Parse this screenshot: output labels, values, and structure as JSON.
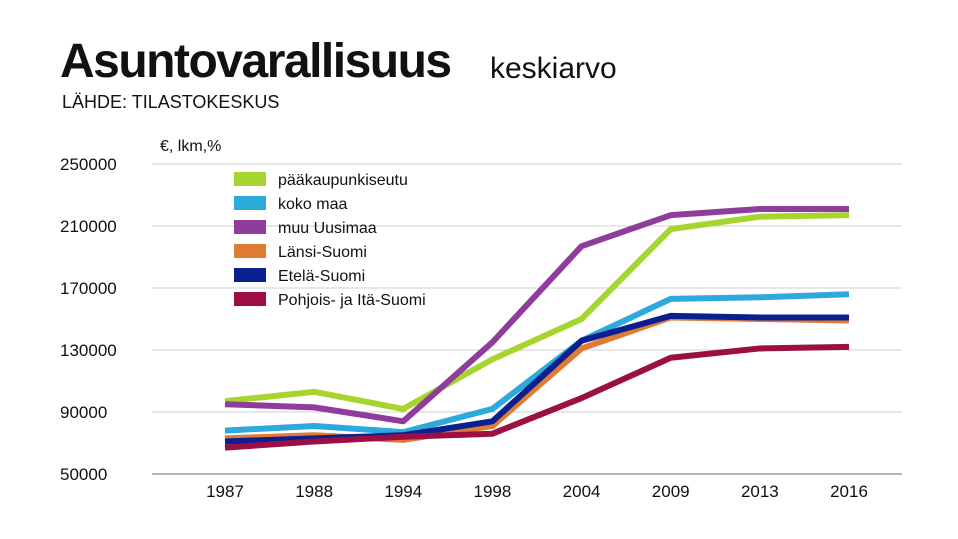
{
  "title": "Asuntovarallisuus",
  "subtitle": "keskiarvo",
  "source": "LÄHDE: TILASTOKESKUS",
  "chart_data": {
    "type": "line",
    "unit_label": "€, lkm,%",
    "categories": [
      "1987",
      "1988",
      "1994",
      "1998",
      "2004",
      "2009",
      "2013",
      "2016"
    ],
    "ylim": [
      50000,
      250000
    ],
    "yticks": [
      "50000",
      "90000",
      "130000",
      "170000",
      "210000",
      "250000"
    ],
    "grid": true,
    "legend_position": "top-left",
    "series": [
      {
        "name": "pääkaupunkiseutu",
        "color": "#a6d52f",
        "values": [
          97000,
          103000,
          92000,
          124000,
          150000,
          208000,
          216000,
          217000
        ]
      },
      {
        "name": "koko maa",
        "color": "#2ea9dc",
        "values": [
          78000,
          81000,
          77000,
          92000,
          136000,
          163000,
          164000,
          166000
        ]
      },
      {
        "name": "muu Uusimaa",
        "color": "#8e3d9b",
        "values": [
          95000,
          93000,
          84000,
          135000,
          197000,
          217000,
          221000,
          221000
        ]
      },
      {
        "name": "Länsi-Suomi",
        "color": "#e07b32",
        "values": [
          73000,
          75000,
          72000,
          81000,
          131000,
          151000,
          150000,
          149000
        ]
      },
      {
        "name": "Etelä-Suomi",
        "color": "#0b1f8f",
        "values": [
          71000,
          73000,
          75000,
          84000,
          136000,
          152000,
          151000,
          151000
        ]
      },
      {
        "name": "Pohjois- ja Itä-Suomi",
        "color": "#9b0f45",
        "values": [
          67000,
          71000,
          74000,
          76000,
          99000,
          125000,
          131000,
          132000
        ]
      }
    ]
  }
}
